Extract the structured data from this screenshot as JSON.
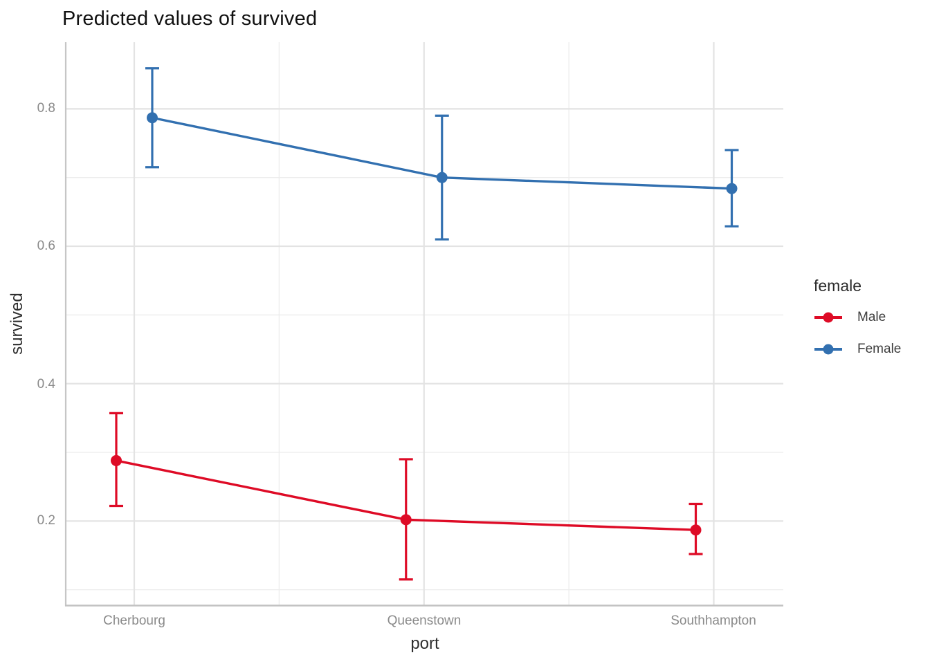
{
  "title": "Predicted values of survived",
  "axes": {
    "x_label": "port",
    "y_label": "survived",
    "x_tick_labels": [
      "Cherbourg",
      "Queenstown",
      "Southhampton"
    ],
    "y_tick_labels": [
      "0.2",
      "0.4",
      "0.6",
      "0.8"
    ]
  },
  "legend": {
    "title": "female",
    "items": [
      {
        "label": "Male",
        "color": "#DE0B26"
      },
      {
        "label": "Female",
        "color": "#3270B0"
      }
    ]
  },
  "chart_data": {
    "type": "line",
    "subtype": "predicted values with 95% CI error bars (point-range)",
    "title": "Predicted values of survived",
    "xlabel": "port",
    "ylabel": "survived",
    "categories": [
      "Cherbourg",
      "Queenstown",
      "Southhampton"
    ],
    "series": [
      {
        "name": "Male",
        "color": "#DE0B26",
        "values": [
          0.288,
          0.202,
          0.187
        ],
        "ci_low": [
          0.222,
          0.115,
          0.152
        ],
        "ci_high": [
          0.357,
          0.29,
          0.225
        ]
      },
      {
        "name": "Female",
        "color": "#3270B0",
        "values": [
          0.787,
          0.7,
          0.684
        ],
        "ci_low": [
          0.715,
          0.61,
          0.629
        ],
        "ci_high": [
          0.859,
          0.79,
          0.74
        ]
      }
    ],
    "ylim": [
      0.077,
      0.897
    ],
    "y_major_gridlines": [
      0.2,
      0.4,
      0.6,
      0.8
    ],
    "y_minor_gridlines": [
      0.1,
      0.3,
      0.5,
      0.7
    ],
    "grid": true,
    "legend_title": "female",
    "legend_position": "right"
  }
}
